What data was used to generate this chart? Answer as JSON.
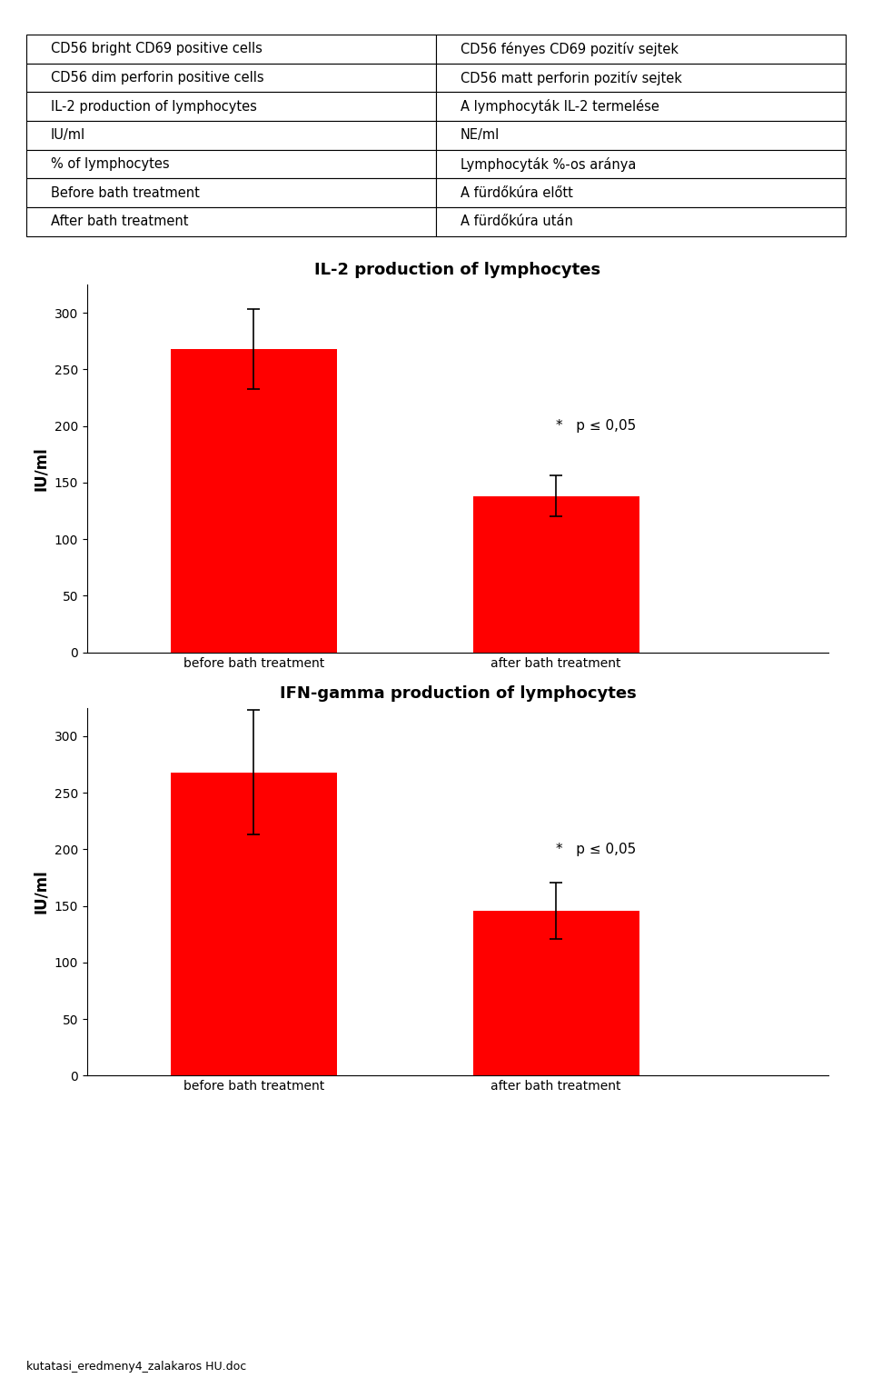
{
  "table_rows": [
    [
      "CD56 bright CD69 positive cells",
      "CD56 fényes CD69 pozitív sejtek"
    ],
    [
      "CD56 dim perforin positive cells",
      "CD56 matt perforin pozitív sejtek"
    ],
    [
      "IL-2 production of lymphocytes",
      "A lymphocyták IL-2 termelése"
    ],
    [
      "IU/ml",
      "NE/ml"
    ],
    [
      "% of lymphocytes",
      "Lymphocyták %-os aránya"
    ],
    [
      "Before bath treatment",
      "A fürdőkúra előtt"
    ],
    [
      "After bath treatment",
      "A fürdőkúra után"
    ]
  ],
  "chart1": {
    "title": "IL-2 production of lymphocytes",
    "ylabel": "IU/ml",
    "categories": [
      "before bath treatment",
      "after bath treatment"
    ],
    "values": [
      268,
      138
    ],
    "errors_up": [
      35,
      18
    ],
    "errors_down": [
      35,
      18
    ],
    "ylim": [
      0,
      325
    ],
    "yticks": [
      0,
      50,
      100,
      150,
      200,
      250,
      300
    ],
    "bar_color": "#ff0000",
    "annotation_text": "*   p ≤ 0,05"
  },
  "chart2": {
    "title": "IFN-gamma production of lymphocytes",
    "ylabel": "IU/ml",
    "categories": [
      "before bath treatment",
      "after bath treatment"
    ],
    "values": [
      268,
      146
    ],
    "errors_up": [
      55,
      25
    ],
    "errors_down": [
      55,
      25
    ],
    "ylim": [
      0,
      325
    ],
    "yticks": [
      0,
      50,
      100,
      150,
      200,
      250,
      300
    ],
    "bar_color": "#ff0000",
    "annotation_text": "*   p ≤ 0,05"
  },
  "footer_text": "kutatasi_eredmeny4_zalakaros HU.doc",
  "background_color": "#ffffff",
  "table_font_size": 10.5,
  "chart_title_fontsize": 13,
  "axis_label_fontsize": 12,
  "tick_fontsize": 10,
  "annotation_fontsize": 11,
  "footer_fontsize": 9
}
